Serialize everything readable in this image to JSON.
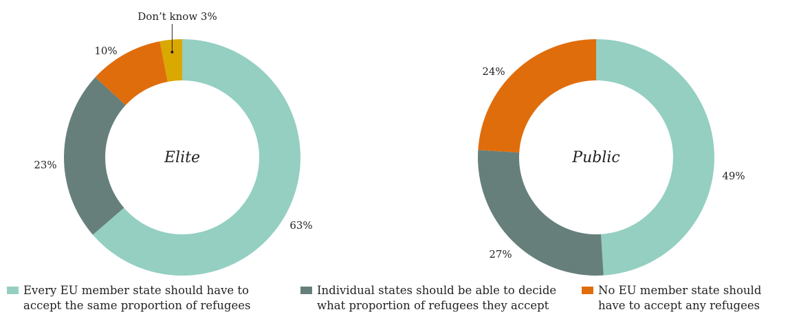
{
  "chart_data": [
    {
      "type": "pie",
      "variant": "donut",
      "title": "Elite",
      "slices": [
        {
          "label": "Every EU member state should have to accept the same proportion of refugees",
          "value": 63,
          "value_label": "63%",
          "color": "#94cfc2"
        },
        {
          "label": "Individual states should be able to decide what proportion of refugees they accept",
          "value": 23,
          "value_label": "23%",
          "color": "#667f7a"
        },
        {
          "label": "No EU member state should have to accept any refugees",
          "value": 10,
          "value_label": "10%",
          "color": "#e06d0c"
        },
        {
          "label": "Don’t know",
          "value": 3,
          "value_label": "Don’t know 3%",
          "color": "#d9a801"
        }
      ]
    },
    {
      "type": "pie",
      "variant": "donut",
      "title": "Public",
      "slices": [
        {
          "label": "Every EU member state should have to accept the same proportion of refugees",
          "value": 49,
          "value_label": "49%",
          "color": "#94cfc2"
        },
        {
          "label": "Individual states should be able to decide what proportion of refugees they accept",
          "value": 27,
          "value_label": "27%",
          "color": "#667f7a"
        },
        {
          "label": "No EU member state should have to accept any refugees",
          "value": 24,
          "value_label": "24%",
          "color": "#e06d0c"
        }
      ]
    }
  ],
  "legend": [
    {
      "text": "Every EU member state should have to\naccept the same proportion of refugees",
      "color": "#94cfc2"
    },
    {
      "text": "Individual states should be able to decide\nwhat proportion of refugees they accept",
      "color": "#667f7a"
    },
    {
      "text": "No EU member state should\nhave to accept any refugees",
      "color": "#e06d0c"
    }
  ]
}
